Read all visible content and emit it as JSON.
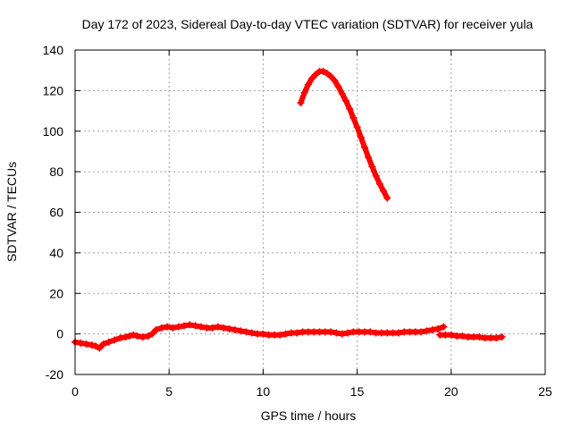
{
  "chart_data": {
    "type": "line",
    "title": "Day 172 of 2023, Sidereal Day-to-day VTEC variation (SDTVAR) for receiver yula",
    "xlabel": "GPS time / hours",
    "ylabel": "SDTVAR / TECUs",
    "xlim": [
      0,
      25
    ],
    "ylim": [
      -20,
      140
    ],
    "x_ticks": [
      0,
      5,
      10,
      15,
      20,
      25
    ],
    "y_ticks": [
      -20,
      0,
      20,
      40,
      60,
      80,
      100,
      120,
      140
    ],
    "grid": true,
    "series_color": "#ff0000",
    "series": [
      {
        "name": "satellite-track-1",
        "x": [
          0.0,
          0.3,
          0.6,
          0.9,
          1.1,
          1.3,
          1.5,
          1.8,
          2.1,
          2.4,
          2.7,
          2.9,
          3.1,
          3.3,
          3.6,
          3.9,
          4.1,
          4.3,
          4.6,
          4.9,
          5.2,
          5.5,
          5.8,
          6.1,
          6.4,
          6.7,
          7.0,
          7.3,
          7.6,
          7.9,
          8.2,
          8.5,
          8.8,
          9.1,
          9.4,
          9.7,
          10.0,
          10.3,
          10.6,
          10.9,
          11.2,
          11.5,
          11.8,
          12.1,
          12.4,
          12.7,
          13.0,
          13.3,
          13.6,
          13.9,
          14.2,
          14.5,
          14.8,
          15.1,
          15.4,
          15.7,
          16.0,
          16.3,
          16.6,
          16.9,
          17.2,
          17.5,
          17.8,
          18.1,
          18.4,
          18.7,
          19.0,
          19.3,
          19.6
        ],
        "y": [
          -4,
          -4.5,
          -5,
          -5.5,
          -6,
          -7,
          -5,
          -4,
          -3,
          -2,
          -1.5,
          -1,
          -0.5,
          -1,
          -1.5,
          -1,
          0,
          2,
          3,
          3.5,
          3,
          3.5,
          4,
          4.5,
          4,
          3.5,
          3,
          3,
          3.5,
          3,
          2.5,
          2,
          1.5,
          1,
          0.5,
          0,
          0,
          -0.5,
          -0.5,
          -0.5,
          0,
          0.5,
          0.5,
          1,
          1,
          1,
          1,
          1,
          1,
          0.5,
          0,
          0.5,
          1,
          1,
          1,
          1,
          0.5,
          0.5,
          0.5,
          0.5,
          0.5,
          1,
          1,
          1,
          1,
          1.5,
          2,
          2.5,
          3.5
        ]
      },
      {
        "name": "satellite-track-2",
        "x": [
          12.0,
          12.2,
          12.4,
          12.6,
          12.8,
          13.0,
          13.2,
          13.4,
          13.6,
          13.8,
          14.0,
          14.2,
          14.4,
          14.6,
          14.8,
          15.0,
          15.2,
          15.4,
          15.6,
          15.8,
          16.0,
          16.2,
          16.4,
          16.6
        ],
        "y": [
          114,
          119,
          123,
          126,
          128,
          129.5,
          129.5,
          128.5,
          127,
          125,
          122,
          118.5,
          115,
          111,
          106.5,
          102,
          97,
          92,
          87,
          82.5,
          78,
          74,
          70.5,
          67
        ]
      },
      {
        "name": "satellite-track-3",
        "x": [
          19.4,
          19.7,
          20.0,
          20.3,
          20.6,
          20.9,
          21.2,
          21.5,
          21.8,
          22.1,
          22.4,
          22.7
        ],
        "y": [
          -0.5,
          -0.5,
          -0.5,
          -1,
          -1,
          -1.5,
          -1.5,
          -1.5,
          -2,
          -2,
          -2,
          -1.5
        ]
      }
    ]
  }
}
